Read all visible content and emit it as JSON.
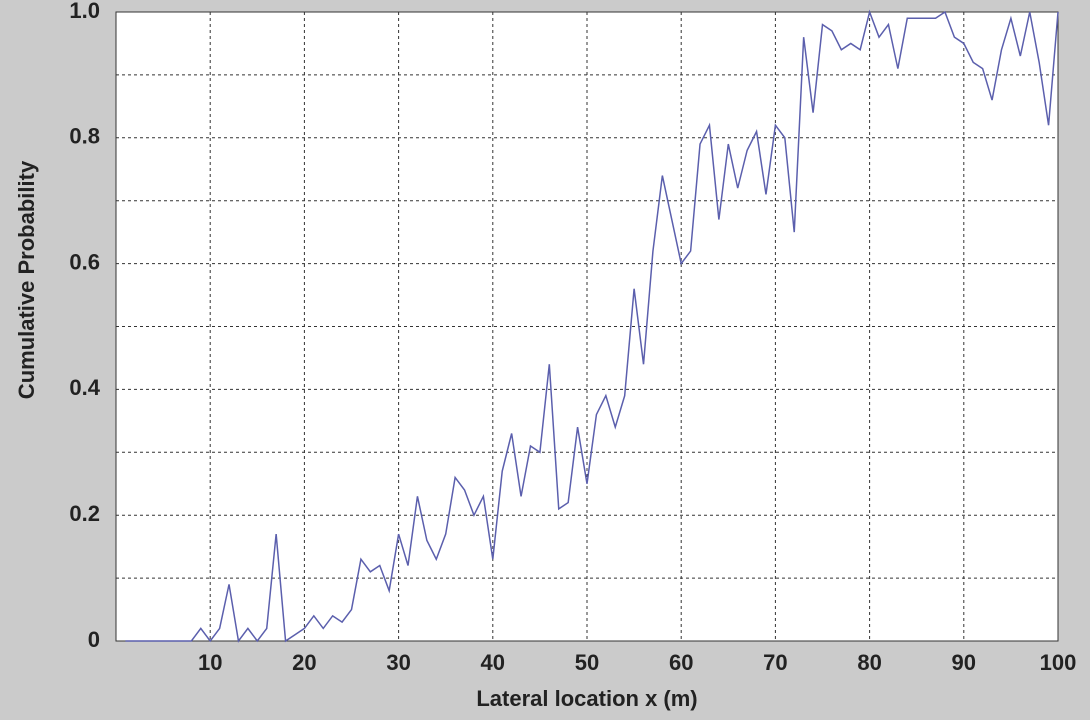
{
  "chart_data": {
    "type": "line",
    "xlabel": "Lateral location x (m)",
    "ylabel": "Cumulative Probability",
    "x": [
      1,
      2,
      3,
      4,
      5,
      6,
      7,
      8,
      9,
      10,
      11,
      12,
      13,
      14,
      15,
      16,
      17,
      18,
      19,
      20,
      21,
      22,
      23,
      24,
      25,
      26,
      27,
      28,
      29,
      30,
      31,
      32,
      33,
      34,
      35,
      36,
      37,
      38,
      39,
      40,
      41,
      42,
      43,
      44,
      45,
      46,
      47,
      48,
      49,
      50,
      51,
      52,
      53,
      54,
      55,
      56,
      57,
      58,
      59,
      60,
      61,
      62,
      63,
      64,
      65,
      66,
      67,
      68,
      69,
      70,
      71,
      72,
      73,
      74,
      75,
      76,
      77,
      78,
      79,
      80,
      81,
      82,
      83,
      84,
      85,
      86,
      87,
      88,
      89,
      90,
      91,
      92,
      93,
      94,
      95,
      96,
      97,
      98,
      99,
      100
    ],
    "series": [
      {
        "color": "#5b5fad",
        "values": [
          0,
          0,
          0,
          0,
          0,
          0,
          0,
          0,
          0.02,
          0,
          0.02,
          0.09,
          0,
          0.02,
          0,
          0.02,
          0.17,
          0,
          0.01,
          0.02,
          0.04,
          0.02,
          0.04,
          0.03,
          0.05,
          0.13,
          0.11,
          0.12,
          0.08,
          0.17,
          0.12,
          0.23,
          0.16,
          0.13,
          0.17,
          0.26,
          0.24,
          0.2,
          0.23,
          0.13,
          0.27,
          0.33,
          0.23,
          0.31,
          0.3,
          0.44,
          0.21,
          0.22,
          0.34,
          0.25,
          0.36,
          0.39,
          0.34,
          0.39,
          0.56,
          0.44,
          0.62,
          0.74,
          0.67,
          0.6,
          0.62,
          0.79,
          0.82,
          0.67,
          0.79,
          0.72,
          0.78,
          0.81,
          0.71,
          0.82,
          0.8,
          0.65,
          0.96,
          0.84,
          0.98,
          0.97,
          0.94,
          0.95,
          0.94,
          1.0,
          0.96,
          0.98,
          0.91,
          0.99,
          0.99,
          0.99,
          0.99,
          1.0,
          0.96,
          0.95,
          0.92,
          0.91,
          0.86,
          0.94,
          0.99,
          0.93,
          1.0,
          0.92,
          0.82,
          1.0
        ]
      }
    ],
    "xlim": [
      0,
      100
    ],
    "xticks": [
      10,
      20,
      30,
      40,
      50,
      60,
      70,
      80,
      90,
      100
    ],
    "ylim": [
      0,
      1
    ],
    "yticks": [
      0,
      0.2,
      0.4,
      0.6,
      0.8,
      {
        "value": 1,
        "label": "1.0"
      }
    ],
    "yminor": [
      0.1,
      0.3,
      0.5,
      0.7,
      0.9
    ],
    "grid": true
  }
}
